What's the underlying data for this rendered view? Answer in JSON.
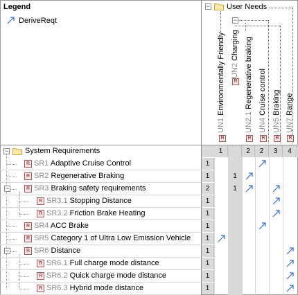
{
  "legend": {
    "title": "Legend",
    "items": [
      {
        "label": "DeriveReqt",
        "icon": "derive-arrow-icon"
      }
    ]
  },
  "column_root": {
    "label": "User Needs",
    "icon": "folder-icon"
  },
  "columns": [
    {
      "id": "UN1",
      "name": "Environmentally Friendly",
      "count": "1"
    },
    {
      "id": "UN2",
      "name": "Charging",
      "count": ""
    },
    {
      "id": "UN2.1",
      "name": "Regenerative braking",
      "count": "2"
    },
    {
      "id": "UN4",
      "name": "Cruise control",
      "count": "2"
    },
    {
      "id": "UN5",
      "name": "Braking",
      "count": "3"
    },
    {
      "id": "UN7",
      "name": "Range",
      "count": "4"
    }
  ],
  "row_root": {
    "label": "System Requirements",
    "icon": "folder-icon"
  },
  "rows": [
    {
      "id": "SR1",
      "name": "Adaptive Cruise Control",
      "count": "1"
    },
    {
      "id": "SR2",
      "name": "Regenerative Braking",
      "count": "1"
    },
    {
      "id": "SR3",
      "name": "Braking safety requirements",
      "count": "2"
    },
    {
      "id": "SR3.1",
      "name": "Stopping Distance",
      "count": "1"
    },
    {
      "id": "SR3.2",
      "name": "Friction Brake Heating",
      "count": "1"
    },
    {
      "id": "SR4",
      "name": "ACC Brake",
      "count": "1"
    },
    {
      "id": "SR5",
      "name": "Category 1 of Ultra Low Emission Vehicle",
      "count": "1"
    },
    {
      "id": "SR6",
      "name": "Distance",
      "count": "1"
    },
    {
      "id": "SR6.1",
      "name": "Full charge mode distance",
      "count": "1"
    },
    {
      "id": "SR6.2",
      "name": "Quick charge mode distance",
      "count": "1"
    },
    {
      "id": "SR6.3",
      "name": "Hybrid mode distance",
      "count": "1"
    }
  ],
  "cells": [
    {
      "row": "SR1",
      "col": "UN4",
      "kind": "arrow"
    },
    {
      "row": "SR2",
      "col": "UN2",
      "kind": "count",
      "value": "1"
    },
    {
      "row": "SR2",
      "col": "UN2.1",
      "kind": "arrow"
    },
    {
      "row": "SR3",
      "col": "UN2",
      "kind": "count",
      "value": "1"
    },
    {
      "row": "SR3",
      "col": "UN2.1",
      "kind": "arrow"
    },
    {
      "row": "SR3",
      "col": "UN5",
      "kind": "arrow"
    },
    {
      "row": "SR3.1",
      "col": "UN5",
      "kind": "arrow"
    },
    {
      "row": "SR3.2",
      "col": "UN5",
      "kind": "arrow"
    },
    {
      "row": "SR4",
      "col": "UN4",
      "kind": "arrow"
    },
    {
      "row": "SR5",
      "col": "UN1",
      "kind": "arrow"
    },
    {
      "row": "SR6",
      "col": "UN7",
      "kind": "arrow"
    },
    {
      "row": "SR6.1",
      "col": "UN7",
      "kind": "arrow"
    },
    {
      "row": "SR6.2",
      "col": "UN7",
      "kind": "arrow"
    },
    {
      "row": "SR6.3",
      "col": "UN7",
      "kind": "arrow"
    }
  ],
  "colors": {
    "arrow": "#3a6fc4",
    "grid": "#d7d7d7",
    "header_bg": "#d9d9d9",
    "id_gray": "#8a8a8a"
  }
}
